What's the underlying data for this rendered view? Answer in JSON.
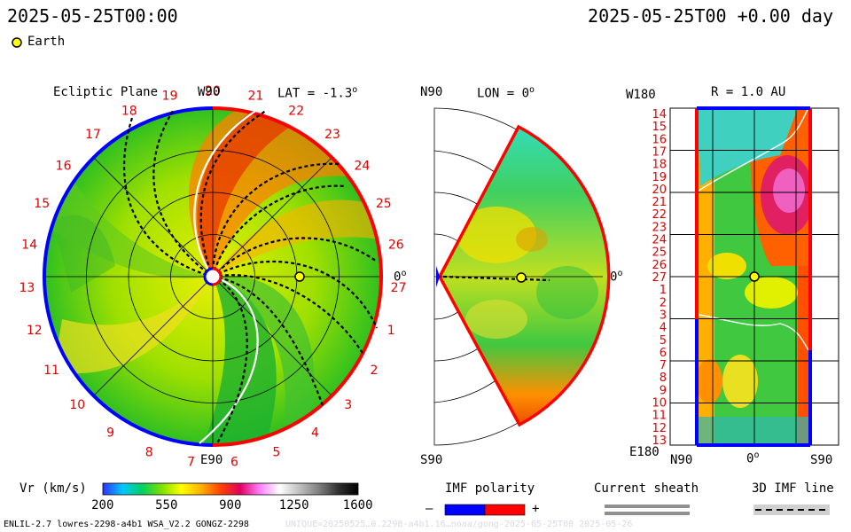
{
  "header": {
    "left_datetime": "2025-05-25T00:00",
    "right_datetime": "2025-05-25T00 +0.00 day",
    "earth_legend": "Earth"
  },
  "panels": {
    "ecliptic": {
      "title": "Ecliptic Plane",
      "lat_label": "LAT = -1.3",
      "top_label": "W90",
      "bottom_label": "E90",
      "right_label": "0",
      "sectors": [
        "20",
        "21",
        "22",
        "23",
        "24",
        "25",
        "26",
        "27",
        "1",
        "2",
        "3",
        "4",
        "5",
        "6",
        "7",
        "8",
        "9",
        "10",
        "11",
        "12",
        "13",
        "14",
        "15",
        "16",
        "17",
        "18",
        "19"
      ]
    },
    "meridional": {
      "top_label": "N90",
      "lon_label": "LON = 0",
      "bottom_label": "S90",
      "right_label": "0"
    },
    "radial": {
      "title": "R = 1.0 AU",
      "top_left_label": "W180",
      "bottom_left_label": "E180",
      "x_labels": [
        "N90",
        "0",
        "S90"
      ],
      "y_labels": [
        "14",
        "15",
        "16",
        "17",
        "18",
        "19",
        "20",
        "21",
        "22",
        "23",
        "24",
        "25",
        "26",
        "27",
        "1",
        "2",
        "3",
        "4",
        "5",
        "6",
        "7",
        "8",
        "9",
        "10",
        "11",
        "12",
        "13"
      ]
    }
  },
  "colorbar": {
    "label": "Vr (km/s)",
    "ticks": [
      "200",
      "550",
      "900",
      "1250",
      "1600"
    ],
    "stops": [
      "#3030ff",
      "#00c8ff",
      "#00d060",
      "#80e000",
      "#ffff00",
      "#ffb000",
      "#ff4000",
      "#e00060",
      "#ff80ff",
      "#ffffff",
      "#c0c0c0",
      "#808080",
      "#303030",
      "#000000"
    ]
  },
  "legends": {
    "imf_polarity": {
      "title": "IMF polarity",
      "minus": "–",
      "plus": "+",
      "neg_color": "#0000ff",
      "pos_color": "#ff0000"
    },
    "current_sheath": {
      "title": "Current sheath"
    },
    "imf_line": {
      "title": "3D IMF line"
    }
  },
  "footer": {
    "model_info": "ENLIL-2.7 lowres-2298-a4b1 WSA_V2.2 GONGZ-2298",
    "faint_info": "UNIQUE=20250525…0.2298-a4b1.16…noaa/gong-2025-05-25T00 2025-05-26"
  },
  "chart_data": {
    "type": "heatmap",
    "variable": "Vr (km/s)",
    "vmin": 200,
    "vmax": 1600,
    "earth": {
      "r_au": 1.0,
      "lon_deg": 0,
      "lat_deg": -1.3
    },
    "views": [
      "ecliptic plane",
      "meridional plane",
      "R = 1.0 AU"
    ]
  }
}
